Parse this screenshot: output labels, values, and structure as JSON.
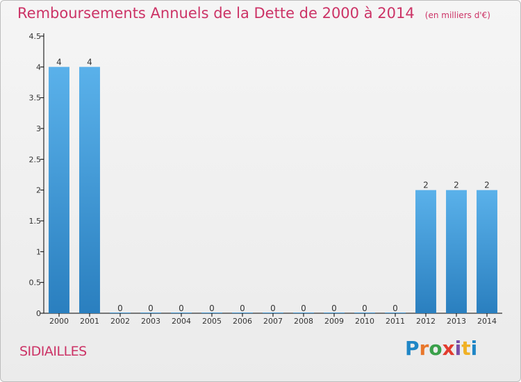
{
  "title": "Remboursements Annuels de la Dette de 2000 à 2014",
  "unit_note": "(en milliers d'€)",
  "commune": "SIDIAILLES",
  "logo_text": "Proxiti",
  "colors": {
    "title": "#cc3366",
    "bar_top": "#5ab1ea",
    "bar_bottom": "#2a7fbf",
    "axis": "#000000"
  },
  "chart_data": {
    "type": "bar",
    "categories": [
      "2000",
      "2001",
      "2002",
      "2003",
      "2004",
      "2005",
      "2006",
      "2007",
      "2008",
      "2009",
      "2010",
      "2011",
      "2012",
      "2013",
      "2014"
    ],
    "values": [
      4,
      4,
      0,
      0,
      0,
      0,
      0,
      0,
      0,
      0,
      0,
      0,
      2,
      2,
      2
    ],
    "data_labels": [
      "4",
      "4",
      "0",
      "0",
      "0",
      "0",
      "0",
      "0",
      "0",
      "0",
      "0",
      "0",
      "2",
      "2",
      "2"
    ],
    "ylim": [
      0,
      4.5
    ],
    "y_ticks": [
      0,
      0.5,
      1,
      1.5,
      2,
      2.5,
      3,
      3.5,
      4,
      4.5
    ],
    "y_tick_labels": [
      "0",
      "0.5",
      "1",
      "1.5",
      "2",
      "2.5",
      "3",
      "3.5",
      "4",
      "4.5"
    ],
    "title": "Remboursements Annuels de la Dette de 2000 à 2014",
    "xlabel": "",
    "ylabel": "",
    "grid": false,
    "legend": "none"
  }
}
